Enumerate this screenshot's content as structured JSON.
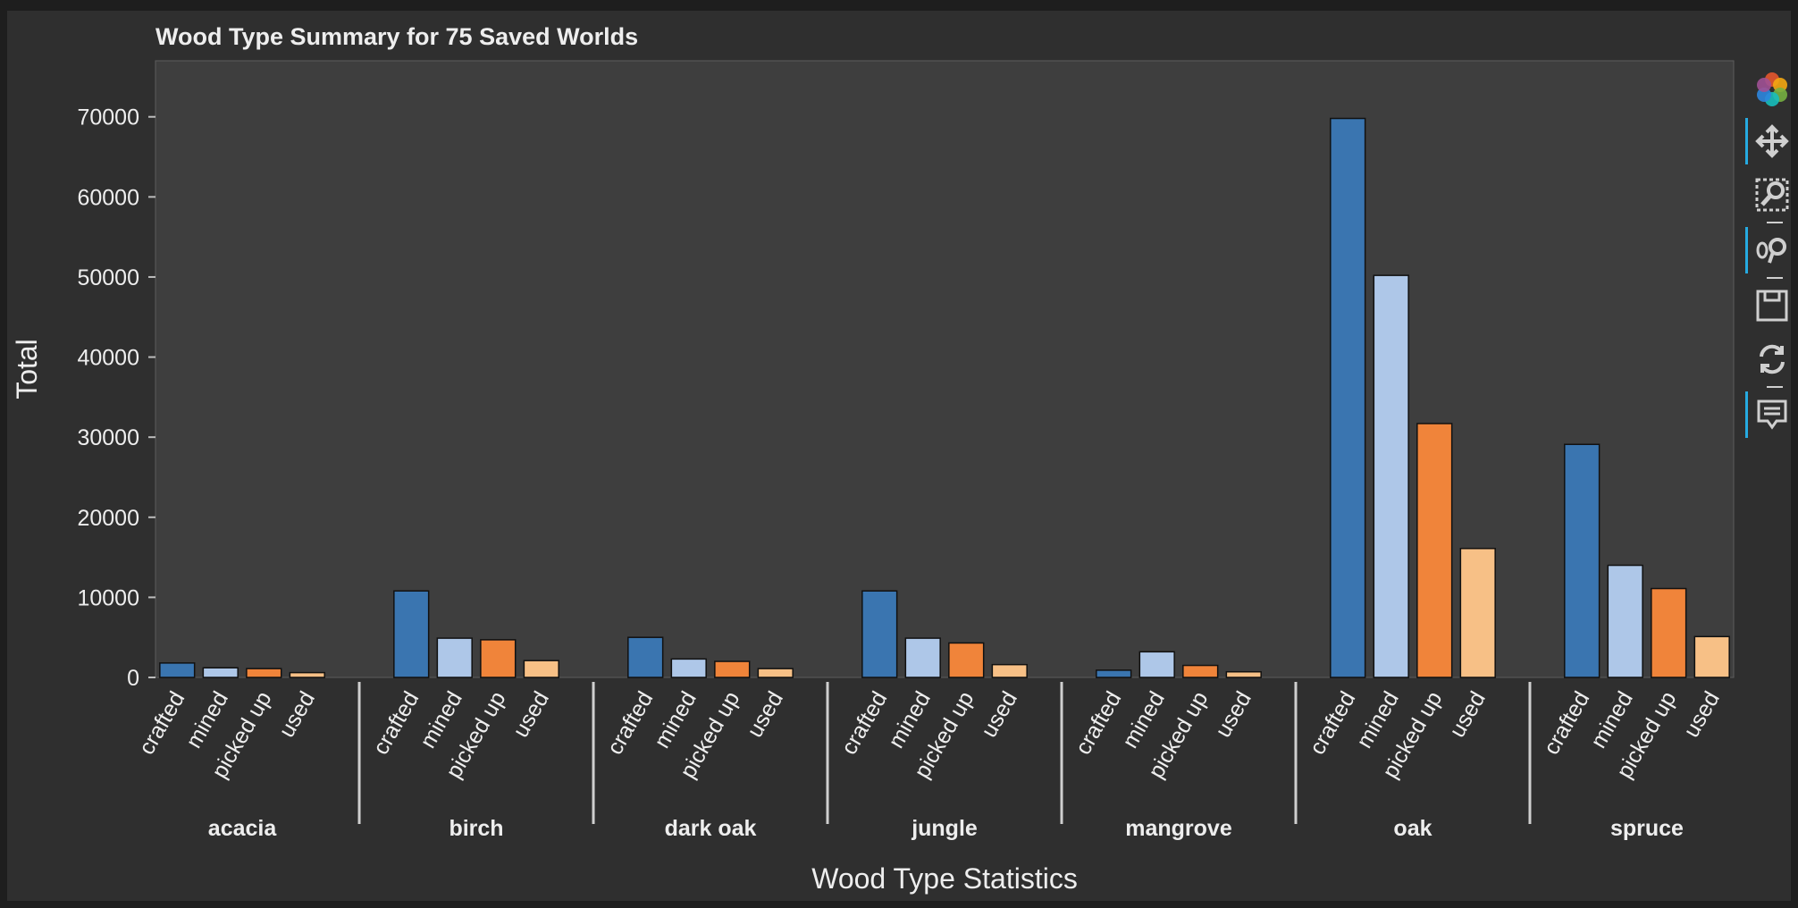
{
  "chart_data": {
    "type": "bar",
    "title": "Wood Type Summary for 75 Saved Worlds",
    "xlabel": "Wood Type Statistics",
    "ylabel": "Total",
    "ylim": [
      0,
      77000
    ],
    "yticks": [
      0,
      10000,
      20000,
      30000,
      40000,
      50000,
      60000,
      70000
    ],
    "grid": false,
    "legend": "none",
    "groups": [
      "acacia",
      "birch",
      "dark oak",
      "jungle",
      "mangrove",
      "oak",
      "spruce"
    ],
    "subcategories": [
      "crafted",
      "mined",
      "picked up",
      "used"
    ],
    "colors": [
      "#3a75b0",
      "#aec7e8",
      "#f0843a",
      "#f7c086"
    ],
    "values": {
      "acacia": [
        1800,
        1200,
        1100,
        600
      ],
      "birch": [
        10800,
        4900,
        4700,
        2100
      ],
      "dark oak": [
        5000,
        2300,
        2000,
        1100
      ],
      "jungle": [
        10800,
        4900,
        4300,
        1600
      ],
      "mangrove": [
        900,
        3200,
        1500,
        700
      ],
      "oak": [
        69800,
        50200,
        31700,
        16100
      ],
      "spruce": [
        29100,
        14000,
        11100,
        5100
      ]
    }
  },
  "toolbar": {
    "tools": [
      {
        "name": "logo",
        "icon": "bokeh-logo-icon",
        "active": false
      },
      {
        "name": "pan",
        "icon": "pan-move-icon",
        "active": true
      },
      {
        "name": "box-zoom",
        "icon": "box-zoom-icon",
        "active": false
      },
      {
        "name": "wheel-zoom",
        "icon": "wheel-zoom-icon",
        "active": true
      },
      {
        "name": "save",
        "icon": "save-icon",
        "active": false
      },
      {
        "name": "reset",
        "icon": "reset-icon",
        "active": false
      },
      {
        "name": "hover",
        "icon": "hover-icon",
        "active": true
      }
    ]
  }
}
